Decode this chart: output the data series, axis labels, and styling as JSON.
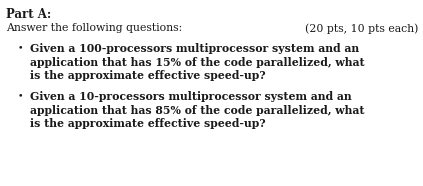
{
  "background_color": "#ffffff",
  "part_label": "Part A:",
  "subtitle": "Answer the following questions:",
  "pts_label": "(20 pts, 10 pts each)",
  "bullet1_line1": "Given a 100-processors multiprocessor system and an",
  "bullet1_line2": "application that has 15% of the code parallelized, what",
  "bullet1_line3": "is the approximate effective speed-up?",
  "bullet2_line1": "Given a 10-processors multiprocessor system and an",
  "bullet2_line2": "application that has 85% of the code parallelized, what",
  "bullet2_line3": "is the approximate effective speed-up?",
  "font_family": "serif",
  "part_fontsize": 8.5,
  "body_fontsize": 7.8,
  "text_color": "#1a1a1a",
  "bullet_char": "•"
}
